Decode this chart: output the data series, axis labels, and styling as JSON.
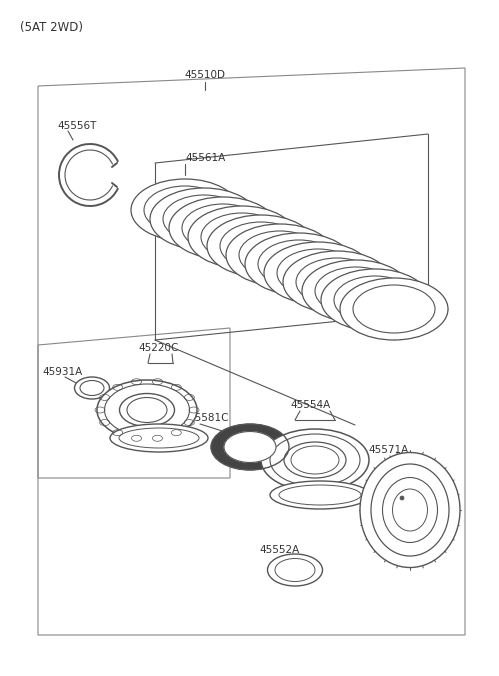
{
  "title": "(5AT 2WD)",
  "bg_color": "#ffffff",
  "lc": "#555555",
  "tc": "#333333",
  "lw": 0.8
}
